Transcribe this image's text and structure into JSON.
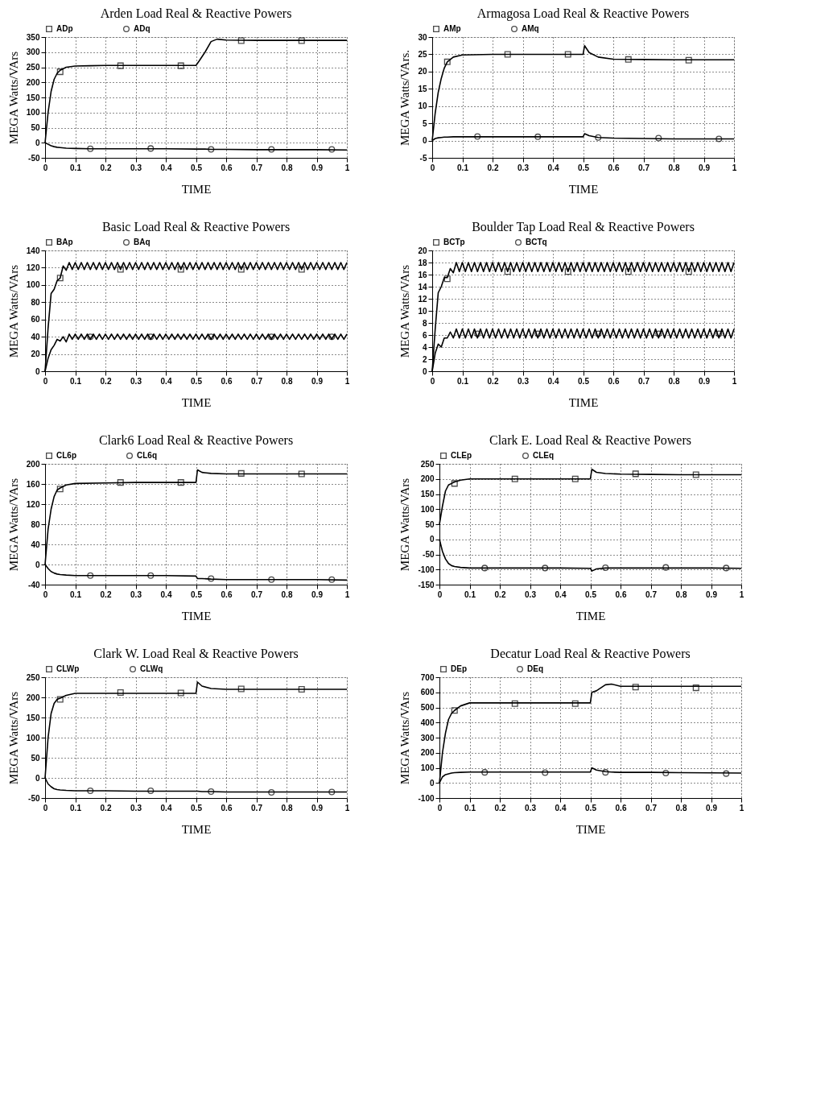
{
  "chart_data": [
    {
      "type": "line",
      "title": "Arden Load Real & Reactive Powers",
      "xlabel": "TIME",
      "ylabel": "MEGA Watts/VArs",
      "xlim": [
        0,
        1
      ],
      "xticks": [
        0,
        0.1,
        0.2,
        0.3,
        0.4,
        0.5,
        0.6,
        0.7,
        0.8,
        0.9,
        1
      ],
      "ylim": [
        -50,
        350
      ],
      "yticks": [
        -50,
        0,
        50,
        100,
        150,
        200,
        250,
        300,
        350
      ],
      "grid": true,
      "legend": "top",
      "x": [
        0,
        0.01,
        0.02,
        0.03,
        0.04,
        0.05,
        0.07,
        0.1,
        0.15,
        0.2,
        0.3,
        0.4,
        0.5,
        0.51,
        0.53,
        0.55,
        0.57,
        0.6,
        0.7,
        0.8,
        0.9,
        1
      ],
      "series": [
        {
          "color": "#000000",
          "marker": "none",
          "values": [
            0,
            100,
            170,
            210,
            230,
            240,
            250,
            254,
            255,
            256,
            256,
            256,
            256,
            270,
            300,
            335,
            343,
            340,
            339,
            339,
            339,
            339
          ]
        },
        {
          "color": "#000000",
          "marker": "none",
          "values": [
            0,
            -5,
            -10,
            -13,
            -15,
            -16,
            -18,
            -19,
            -20,
            -20,
            -20,
            -20,
            -21,
            -21,
            -21,
            -22,
            -22,
            -22,
            -23,
            -23,
            -23,
            -24
          ]
        },
        {
          "type": "scatter",
          "name": "ADp",
          "color": "#000000",
          "marker": "square",
          "x": [
            0.05,
            0.25,
            0.45,
            0.65,
            0.85
          ],
          "values": [
            235,
            255,
            255,
            338,
            338
          ]
        },
        {
          "type": "scatter",
          "name": "ADq",
          "color": "#000000",
          "marker": "circle",
          "x": [
            0.15,
            0.35,
            0.55,
            0.75,
            0.95
          ],
          "values": [
            -20,
            -19,
            -22,
            -22,
            -22
          ]
        }
      ]
    },
    {
      "type": "line",
      "title": "Armagosa Load Real & Reactive Powers",
      "xlabel": "TIME",
      "ylabel": "MEGA Watts/VArs.",
      "xlim": [
        0,
        1
      ],
      "xticks": [
        0,
        0.1,
        0.2,
        0.3,
        0.4,
        0.5,
        0.6,
        0.7,
        0.8,
        0.9,
        1
      ],
      "ylim": [
        -5,
        30
      ],
      "yticks": [
        -5,
        0,
        5,
        10,
        15,
        20,
        25,
        30
      ],
      "grid": true,
      "legend": "top",
      "x": [
        0,
        0.01,
        0.02,
        0.03,
        0.04,
        0.05,
        0.07,
        0.1,
        0.2,
        0.3,
        0.4,
        0.5,
        0.505,
        0.52,
        0.55,
        0.6,
        0.7,
        0.8,
        0.9,
        1
      ],
      "series": [
        {
          "color": "#000000",
          "marker": "none",
          "values": [
            0,
            8,
            14,
            18,
            21,
            22.8,
            24.2,
            24.8,
            25,
            25,
            25,
            25,
            27.5,
            25.5,
            24.2,
            23.6,
            23.5,
            23.4,
            23.4,
            23.4
          ]
        },
        {
          "color": "#000000",
          "marker": "none",
          "values": [
            0,
            0.6,
            0.8,
            0.9,
            1,
            1,
            1.1,
            1.1,
            1.1,
            1.1,
            1.1,
            1.1,
            2,
            1.4,
            0.9,
            0.7,
            0.6,
            0.5,
            0.5,
            0.5
          ]
        },
        {
          "type": "scatter",
          "name": "AMp",
          "color": "#000000",
          "marker": "square",
          "x": [
            0.05,
            0.25,
            0.45,
            0.65,
            0.85
          ],
          "values": [
            22.8,
            25,
            25,
            23.5,
            23.3
          ]
        },
        {
          "type": "scatter",
          "name": "AMq",
          "color": "#000000",
          "marker": "circle",
          "x": [
            0.15,
            0.35,
            0.55,
            0.75,
            0.95
          ],
          "values": [
            1.2,
            1.1,
            0.9,
            0.7,
            0.5
          ]
        }
      ]
    },
    {
      "type": "line",
      "title": "Basic Load Real & Reactive Powers",
      "xlabel": "TIME",
      "ylabel": "MEGA Watts/VArs",
      "xlim": [
        0,
        1
      ],
      "xticks": [
        0,
        0.1,
        0.2,
        0.3,
        0.4,
        0.5,
        0.6,
        0.7,
        0.8,
        0.9,
        1
      ],
      "ylim": [
        0,
        140
      ],
      "yticks": [
        0,
        20,
        40,
        60,
        80,
        100,
        120,
        140
      ],
      "grid": true,
      "legend": "top",
      "x": [
        0,
        0.01,
        0.02,
        0.03,
        0.04,
        0.05,
        0.06,
        0.07,
        0.08,
        0.09,
        0.1,
        0.11,
        0.12,
        0.13,
        0.14,
        0.15,
        0.16,
        0.17,
        0.18,
        0.19,
        0.2,
        0.21,
        0.22,
        0.23,
        0.24,
        0.25,
        0.26,
        0.27,
        0.28,
        0.29,
        0.3,
        0.31,
        0.32,
        0.33,
        0.34,
        0.35,
        0.36,
        0.37,
        0.38,
        0.39,
        0.4,
        0.41,
        0.42,
        0.43,
        0.44,
        0.45,
        0.46,
        0.47,
        0.48,
        0.49,
        0.5,
        0.51,
        0.52,
        0.53,
        0.54,
        0.55,
        0.56,
        0.57,
        0.58,
        0.59,
        0.6,
        0.61,
        0.62,
        0.63,
        0.64,
        0.65,
        0.66,
        0.67,
        0.68,
        0.69,
        0.7,
        0.71,
        0.72,
        0.73,
        0.74,
        0.75,
        0.76,
        0.77,
        0.78,
        0.79,
        0.8,
        0.81,
        0.82,
        0.83,
        0.84,
        0.85,
        0.86,
        0.87,
        0.88,
        0.89,
        0.9,
        0.91,
        0.92,
        0.93,
        0.94,
        0.95,
        0.96,
        0.97,
        0.98,
        0.99,
        1
      ],
      "series": [
        {
          "color": "#000000",
          "marker": "none",
          "values": [
            0,
            50,
            90,
            95,
            105,
            108,
            122,
            117,
            126,
            118,
            126,
            118,
            126,
            118,
            126,
            118,
            126,
            118,
            126,
            118,
            126,
            118,
            126,
            118,
            126,
            118,
            126,
            118,
            126,
            118,
            126,
            118,
            126,
            118,
            126,
            118,
            126,
            118,
            126,
            118,
            126,
            118,
            126,
            118,
            126,
            118,
            126,
            118,
            126,
            118,
            126,
            118,
            126,
            118,
            126,
            118,
            126,
            118,
            126,
            118,
            126,
            118,
            126,
            118,
            126,
            118,
            126,
            118,
            126,
            118,
            126,
            118,
            126,
            118,
            126,
            118,
            126,
            118,
            126,
            118,
            126,
            118,
            126,
            118,
            126,
            118,
            126,
            118,
            126,
            118,
            126,
            118,
            126,
            118,
            126,
            118,
            126,
            118,
            126,
            118,
            126
          ]
        },
        {
          "color": "#000000",
          "marker": "none",
          "values": [
            0,
            15,
            25,
            30,
            37,
            35,
            40,
            34,
            43,
            37,
            43,
            37,
            43,
            37,
            43,
            37,
            43,
            37,
            43,
            37,
            43,
            37,
            43,
            37,
            43,
            37,
            43,
            37,
            43,
            37,
            43,
            37,
            43,
            37,
            43,
            37,
            43,
            37,
            43,
            37,
            43,
            37,
            43,
            37,
            43,
            37,
            43,
            37,
            43,
            37,
            43,
            37,
            43,
            37,
            43,
            37,
            43,
            37,
            43,
            37,
            43,
            37,
            43,
            37,
            43,
            37,
            43,
            37,
            43,
            37,
            43,
            37,
            43,
            37,
            43,
            37,
            43,
            37,
            43,
            37,
            43,
            37,
            43,
            37,
            43,
            37,
            43,
            37,
            43,
            37,
            43,
            37,
            43,
            37,
            43,
            37,
            43,
            37,
            43,
            37,
            43
          ]
        },
        {
          "type": "scatter",
          "name": "BAp",
          "color": "#000000",
          "marker": "square",
          "x": [
            0.05,
            0.25,
            0.45,
            0.65,
            0.85
          ],
          "values": [
            108,
            118,
            118,
            118,
            118
          ]
        },
        {
          "type": "scatter",
          "name": "BAq",
          "color": "#000000",
          "marker": "circle",
          "x": [
            0.15,
            0.35,
            0.55,
            0.75,
            0.95
          ],
          "values": [
            40,
            40,
            40,
            40,
            40
          ]
        }
      ]
    },
    {
      "type": "line",
      "title": "Boulder Tap Load Real & Reactive Powers",
      "xlabel": "TIME",
      "ylabel": "MEGA Watts/VArs",
      "xlim": [
        0,
        1
      ],
      "xticks": [
        0,
        0.1,
        0.2,
        0.3,
        0.4,
        0.5,
        0.6,
        0.7,
        0.8,
        0.9,
        1
      ],
      "ylim": [
        0,
        20
      ],
      "yticks": [
        0,
        2,
        4,
        6,
        8,
        10,
        12,
        14,
        16,
        18,
        20
      ],
      "grid": true,
      "legend": "top",
      "x": [
        0,
        0.01,
        0.02,
        0.03,
        0.04,
        0.05,
        0.06,
        0.07,
        0.08,
        0.09,
        0.1,
        0.11,
        0.12,
        0.13,
        0.14,
        0.15,
        0.16,
        0.17,
        0.18,
        0.19,
        0.2,
        0.21,
        0.22,
        0.23,
        0.24,
        0.25,
        0.26,
        0.27,
        0.28,
        0.29,
        0.3,
        0.31,
        0.32,
        0.33,
        0.34,
        0.35,
        0.36,
        0.37,
        0.38,
        0.39,
        0.4,
        0.41,
        0.42,
        0.43,
        0.44,
        0.45,
        0.46,
        0.47,
        0.48,
        0.49,
        0.5,
        0.51,
        0.52,
        0.53,
        0.54,
        0.55,
        0.56,
        0.57,
        0.58,
        0.59,
        0.6,
        0.61,
        0.62,
        0.63,
        0.64,
        0.65,
        0.66,
        0.67,
        0.68,
        0.69,
        0.7,
        0.71,
        0.72,
        0.73,
        0.74,
        0.75,
        0.76,
        0.77,
        0.78,
        0.79,
        0.8,
        0.81,
        0.82,
        0.83,
        0.84,
        0.85,
        0.86,
        0.87,
        0.88,
        0.89,
        0.9,
        0.91,
        0.92,
        0.93,
        0.94,
        0.95,
        0.96,
        0.97,
        0.98,
        0.99,
        1
      ],
      "series": [
        {
          "color": "#000000",
          "marker": "none",
          "values": [
            0,
            7,
            13,
            14,
            15.5,
            15.5,
            17,
            16.3,
            18,
            16.5,
            18,
            16.5,
            18,
            16.5,
            18,
            16.5,
            18,
            16.5,
            18,
            16.5,
            18,
            16.5,
            18,
            16.5,
            18,
            16.5,
            18,
            16.5,
            18,
            16.5,
            18,
            16.5,
            18,
            16.5,
            18,
            16.5,
            18,
            16.5,
            18,
            16.5,
            18,
            16.5,
            18,
            16.5,
            18,
            16.5,
            18,
            16.5,
            18,
            16.5,
            18,
            16.5,
            18,
            16.5,
            18,
            16.5,
            18,
            16.5,
            18,
            16.5,
            18,
            16.5,
            18,
            16.5,
            18,
            16.5,
            18,
            16.5,
            18,
            16.5,
            18,
            16.5,
            18,
            16.5,
            18,
            16.5,
            18,
            16.5,
            18,
            16.5,
            18,
            16.5,
            18,
            16.5,
            18,
            16.5,
            18,
            16.5,
            18,
            16.5,
            18,
            16.5,
            18,
            16.5,
            18,
            16.5,
            18,
            16.5,
            18,
            16.5,
            18
          ]
        },
        {
          "color": "#000000",
          "marker": "none",
          "values": [
            0,
            3,
            4.5,
            4,
            5.5,
            5.5,
            6.5,
            5.5,
            7,
            5.5,
            7,
            5.5,
            7,
            5.5,
            7,
            5.5,
            7,
            5.5,
            7,
            5.5,
            7,
            5.5,
            7,
            5.5,
            7,
            5.5,
            7,
            5.5,
            7,
            5.5,
            7,
            5.5,
            7,
            5.5,
            7,
            5.5,
            7,
            5.5,
            7,
            5.5,
            7,
            5.5,
            7,
            5.5,
            7,
            5.5,
            7,
            5.5,
            7,
            5.5,
            7,
            5.5,
            7,
            5.5,
            7,
            5.5,
            7,
            5.5,
            7,
            5.5,
            7,
            5.5,
            7,
            5.5,
            7,
            5.5,
            7,
            5.5,
            7,
            5.5,
            7,
            5.5,
            7,
            5.5,
            7,
            5.5,
            7,
            5.5,
            7,
            5.5,
            7,
            5.5,
            7,
            5.5,
            7,
            5.5,
            7,
            5.5,
            7,
            5.5,
            7,
            5.5,
            7,
            5.5,
            7,
            5.5,
            7,
            5.5,
            7,
            5.5,
            7
          ]
        },
        {
          "type": "scatter",
          "name": "BCTp",
          "color": "#000000",
          "marker": "square",
          "x": [
            0.05,
            0.25,
            0.45,
            0.65,
            0.85
          ],
          "values": [
            15.3,
            16.5,
            16.5,
            16.5,
            16.5
          ]
        },
        {
          "type": "scatter",
          "name": "BCTq",
          "color": "#000000",
          "marker": "circle",
          "x": [
            0.15,
            0.35,
            0.55,
            0.75,
            0.95
          ],
          "values": [
            6.2,
            6.2,
            6.2,
            6.2,
            6.2
          ]
        }
      ]
    },
    {
      "type": "line",
      "title": "Clark6 Load Real & Reactive Powers",
      "xlabel": "TIME",
      "ylabel": "MEGA Watts/VArs",
      "xlim": [
        0,
        1
      ],
      "xticks": [
        0,
        0.1,
        0.2,
        0.3,
        0.4,
        0.5,
        0.6,
        0.7,
        0.8,
        0.9,
        1
      ],
      "ylim": [
        -40,
        200
      ],
      "yticks": [
        -40,
        0,
        40,
        80,
        120,
        160,
        200
      ],
      "grid": true,
      "legend": "top",
      "x": [
        0,
        0.01,
        0.02,
        0.03,
        0.04,
        0.05,
        0.07,
        0.1,
        0.2,
        0.3,
        0.4,
        0.5,
        0.505,
        0.52,
        0.55,
        0.6,
        0.7,
        0.8,
        0.9,
        1
      ],
      "series": [
        {
          "color": "#000000",
          "marker": "none",
          "values": [
            0,
            70,
            110,
            135,
            148,
            152,
            158,
            161,
            162,
            163,
            163,
            163,
            188,
            183,
            181,
            180,
            180,
            180,
            180,
            180
          ]
        },
        {
          "color": "#000000",
          "marker": "none",
          "values": [
            0,
            -8,
            -14,
            -17,
            -19,
            -20,
            -21,
            -22,
            -22,
            -22,
            -22,
            -23,
            -28,
            -28,
            -29,
            -30,
            -30,
            -30,
            -30,
            -31
          ]
        },
        {
          "type": "scatter",
          "name": "CL6p",
          "color": "#000000",
          "marker": "square",
          "x": [
            0.05,
            0.25,
            0.45,
            0.65,
            0.85
          ],
          "values": [
            150,
            163,
            163,
            181,
            180
          ]
        },
        {
          "type": "scatter",
          "name": "CL6q",
          "color": "#000000",
          "marker": "circle",
          "x": [
            0.15,
            0.35,
            0.55,
            0.75,
            0.95
          ],
          "values": [
            -22,
            -22,
            -28,
            -30,
            -30
          ]
        }
      ]
    },
    {
      "type": "line",
      "title": "Clark E. Load Real & Reactive Powers",
      "xlabel": "TIME",
      "ylabel": "MEGA Watts/VArs",
      "xlim": [
        0,
        1
      ],
      "xticks": [
        0,
        0.1,
        0.2,
        0.3,
        0.4,
        0.5,
        0.6,
        0.7,
        0.8,
        0.9,
        1
      ],
      "ylim": [
        -150,
        250
      ],
      "yticks": [
        -150,
        -100,
        -50,
        0,
        50,
        100,
        150,
        200,
        250
      ],
      "grid": true,
      "legend": "top",
      "x": [
        0,
        0.01,
        0.02,
        0.03,
        0.04,
        0.05,
        0.07,
        0.1,
        0.2,
        0.3,
        0.4,
        0.5,
        0.505,
        0.52,
        0.55,
        0.6,
        0.7,
        0.8,
        0.9,
        1
      ],
      "series": [
        {
          "color": "#000000",
          "marker": "none",
          "values": [
            50,
            110,
            160,
            180,
            185,
            190,
            196,
            200,
            200,
            200,
            200,
            200,
            232,
            222,
            218,
            216,
            215,
            214,
            214,
            214
          ]
        },
        {
          "color": "#000000",
          "marker": "none",
          "values": [
            0,
            -40,
            -65,
            -80,
            -87,
            -90,
            -93,
            -95,
            -95,
            -95,
            -95,
            -96,
            -105,
            -98,
            -95,
            -95,
            -95,
            -95,
            -95,
            -96
          ]
        },
        {
          "type": "scatter",
          "name": "CLEp",
          "color": "#000000",
          "marker": "square",
          "x": [
            0.05,
            0.25,
            0.45,
            0.65,
            0.85
          ],
          "values": [
            185,
            200,
            200,
            217,
            214
          ]
        },
        {
          "type": "scatter",
          "name": "CLEq",
          "color": "#000000",
          "marker": "circle",
          "x": [
            0.15,
            0.35,
            0.55,
            0.75,
            0.95
          ],
          "values": [
            -95,
            -95,
            -94,
            -93,
            -95
          ]
        }
      ]
    },
    {
      "type": "line",
      "title": "Clark W. Load Real & Reactive Powers",
      "xlabel": "TIME",
      "ylabel": "MEGA Watts/VArs",
      "xlim": [
        0,
        1
      ],
      "xticks": [
        0,
        0.1,
        0.2,
        0.3,
        0.4,
        0.5,
        0.6,
        0.7,
        0.8,
        0.9,
        1
      ],
      "ylim": [
        -50,
        250
      ],
      "yticks": [
        -50,
        0,
        50,
        100,
        150,
        200,
        250
      ],
      "grid": true,
      "legend": "top",
      "x": [
        0,
        0.01,
        0.02,
        0.03,
        0.04,
        0.05,
        0.07,
        0.1,
        0.2,
        0.3,
        0.4,
        0.5,
        0.505,
        0.52,
        0.55,
        0.6,
        0.7,
        0.8,
        0.9,
        1
      ],
      "series": [
        {
          "color": "#000000",
          "marker": "none",
          "values": [
            0,
            100,
            160,
            185,
            195,
            198,
            205,
            210,
            210,
            210,
            210,
            210,
            238,
            228,
            222,
            220,
            220,
            220,
            220,
            220
          ]
        },
        {
          "color": "#000000",
          "marker": "none",
          "values": [
            0,
            -15,
            -22,
            -27,
            -29,
            -30,
            -31,
            -32,
            -32,
            -33,
            -33,
            -33,
            -33,
            -34,
            -34,
            -35,
            -35,
            -35,
            -35,
            -35
          ]
        },
        {
          "type": "scatter",
          "name": "CLWp",
          "color": "#000000",
          "marker": "square",
          "x": [
            0.05,
            0.25,
            0.45,
            0.65,
            0.85
          ],
          "values": [
            195,
            212,
            211,
            221,
            220
          ]
        },
        {
          "type": "scatter",
          "name": "CLWq",
          "color": "#000000",
          "marker": "circle",
          "x": [
            0.15,
            0.35,
            0.55,
            0.75,
            0.95
          ],
          "values": [
            -32,
            -32,
            -34,
            -36,
            -35
          ]
        }
      ]
    },
    {
      "type": "line",
      "title": "Decatur Load Real & Reactive Powers",
      "xlabel": "TIME",
      "ylabel": "MEGA Watts/VArs",
      "xlim": [
        0,
        1
      ],
      "xticks": [
        0,
        0.1,
        0.2,
        0.3,
        0.4,
        0.5,
        0.6,
        0.7,
        0.8,
        0.9,
        1
      ],
      "ylim": [
        -100,
        700
      ],
      "yticks": [
        -100,
        0,
        100,
        200,
        300,
        400,
        500,
        600,
        700
      ],
      "grid": true,
      "legend": "top",
      "x": [
        0,
        0.01,
        0.02,
        0.03,
        0.04,
        0.05,
        0.07,
        0.1,
        0.2,
        0.3,
        0.4,
        0.5,
        0.505,
        0.52,
        0.55,
        0.57,
        0.6,
        0.7,
        0.8,
        0.9,
        1
      ],
      "series": [
        {
          "color": "#000000",
          "marker": "none",
          "values": [
            0,
            200,
            330,
            420,
            460,
            480,
            510,
            530,
            530,
            530,
            530,
            530,
            600,
            610,
            650,
            655,
            640,
            640,
            640,
            640,
            640
          ]
        },
        {
          "color": "#000000",
          "marker": "none",
          "values": [
            0,
            40,
            55,
            60,
            65,
            68,
            70,
            72,
            72,
            72,
            72,
            72,
            100,
            85,
            75,
            72,
            70,
            70,
            68,
            67,
            65
          ]
        },
        {
          "type": "scatter",
          "name": "DEp",
          "color": "#000000",
          "marker": "square",
          "x": [
            0.05,
            0.25,
            0.45,
            0.65,
            0.85
          ],
          "values": [
            480,
            525,
            525,
            635,
            630
          ]
        },
        {
          "type": "scatter",
          "name": "DEq",
          "color": "#000000",
          "marker": "circle",
          "x": [
            0.15,
            0.35,
            0.55,
            0.75,
            0.95
          ],
          "values": [
            70,
            68,
            70,
            65,
            62
          ]
        }
      ]
    }
  ]
}
